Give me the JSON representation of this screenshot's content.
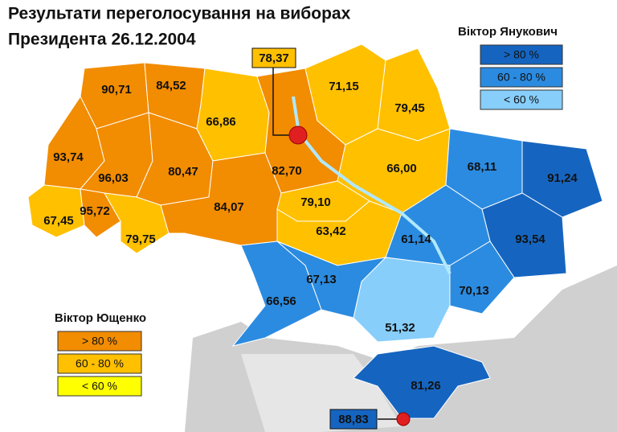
{
  "title": {
    "line1": "Результати переголосування на виборах",
    "line2": "Президента 26.12.2004"
  },
  "legends": [
    {
      "title": "Віктор Янукович",
      "items": [
        "> 80 %",
        "60 - 80 %",
        "< 60 %"
      ]
    },
    {
      "title": "Віктор Ющенко",
      "items": [
        "> 80 %",
        "60 - 80 %",
        "< 60 %"
      ]
    }
  ],
  "regions": [
    {
      "label": "90,71"
    },
    {
      "label": "84,52"
    },
    {
      "label": "93,74"
    },
    {
      "label": "96,03"
    },
    {
      "label": "80,47"
    },
    {
      "label": "67,45"
    },
    {
      "label": "95,72"
    },
    {
      "label": "79,75"
    },
    {
      "label": "66,86"
    },
    {
      "label": "84,07"
    },
    {
      "label": "82,70"
    },
    {
      "label": "71,15"
    },
    {
      "label": "79,45"
    },
    {
      "label": "66,00"
    },
    {
      "label": "79,10"
    },
    {
      "label": "63,42"
    },
    {
      "label": "68,11"
    },
    {
      "label": "91,24"
    },
    {
      "label": "93,54"
    },
    {
      "label": "61,14"
    },
    {
      "label": "70,13"
    },
    {
      "label": "51,32"
    },
    {
      "label": "67,13"
    },
    {
      "label": "66,56"
    },
    {
      "label": "81,26"
    }
  ],
  "callouts": [
    {
      "label": "78,37"
    },
    {
      "label": "88,83"
    }
  ]
}
